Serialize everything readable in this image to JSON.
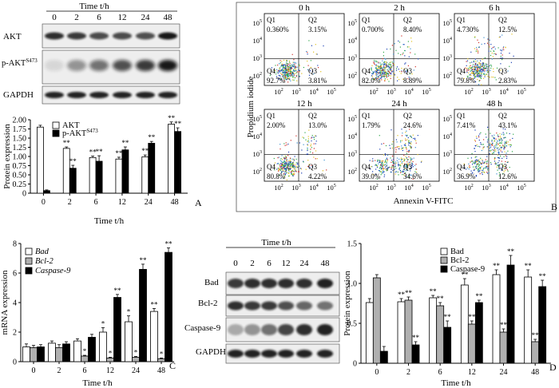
{
  "panelA": {
    "time_header": "Time t/h",
    "time_labels": [
      "0",
      "2",
      "6",
      "12",
      "24",
      "48"
    ],
    "blot_labels": [
      "AKT",
      "p-AKT",
      "GAPDH"
    ],
    "pakt_sup": "S473",
    "panel_letter": "A",
    "chart_data": {
      "type": "bar",
      "title": "",
      "xlabel": "Time t/h",
      "ylabel": "Protein expression",
      "categories": [
        "0",
        "2",
        "6",
        "12",
        "24",
        "48"
      ],
      "ylim": [
        0,
        2.0
      ],
      "yticks": [
        "0",
        "0.25",
        "0.50",
        "0.75",
        "1.00",
        "1.25",
        "1.50",
        "1.75",
        "2.00"
      ],
      "series": [
        {
          "name": "AKT",
          "values": [
            1.8,
            1.22,
            0.97,
            0.93,
            0.99,
            1.88
          ],
          "errors": [
            0.05,
            0.04,
            0.04,
            0.05,
            0.05,
            0.06
          ],
          "sig": [
            "",
            "**",
            "**",
            "**",
            "**",
            "**"
          ],
          "color": "#ffffff"
        },
        {
          "name": "p-AKT",
          "values": [
            0.07,
            0.68,
            0.87,
            1.18,
            1.36,
            1.68
          ],
          "errors": [
            0.02,
            0.08,
            0.15,
            0.08,
            0.05,
            0.1
          ],
          "sig": [
            "",
            "**",
            "**",
            "**",
            "**",
            "**"
          ],
          "color": "#000000"
        }
      ],
      "legend": "top-right"
    }
  },
  "panelB": {
    "ylabel": "Propidium iodide",
    "xlabel": "Annexin V-FITC",
    "panel_letter": "B",
    "tick_labels": [
      "10",
      "10",
      "10",
      "10"
    ],
    "tick_exps": [
      "2",
      "3",
      "4",
      "5"
    ],
    "plots": [
      {
        "time": "0 h",
        "q1": "0.360%",
        "q2": "3.15%",
        "q3": "3.81%",
        "q4": "92.7%"
      },
      {
        "time": "2 h",
        "q1": "0.700%",
        "q2": "8.40%",
        "q3": "8.89%",
        "q4": "82.0%"
      },
      {
        "time": "6 h",
        "q1": "4.730%",
        "q2": "12.5%",
        "q3": "2.83%",
        "q4": "79.8%"
      },
      {
        "time": "12 h",
        "q1": "2.00%",
        "q2": "13.0%",
        "q3": "4.22%",
        "q4": "80.8%"
      },
      {
        "time": "24 h",
        "q1": "1.79%",
        "q2": "24.6%",
        "q3": "34.6%",
        "q4": "39.0%"
      },
      {
        "time": "48 h",
        "q1": "7.41%",
        "q2": "43.1%",
        "q3": "12.6%",
        "q4": "36.9%"
      }
    ],
    "quadrant_names": [
      "Q1",
      "Q2",
      "Q3",
      "Q4"
    ]
  },
  "panelC": {
    "panel_letter": "C",
    "chart_data": {
      "type": "bar",
      "title": "",
      "xlabel": "Time t/h",
      "ylabel": "mRNA expression",
      "categories": [
        "0",
        "2",
        "6",
        "12",
        "24",
        "48"
      ],
      "ylim": [
        0,
        8
      ],
      "yticks": [
        "0",
        "2",
        "4",
        "6",
        "8"
      ],
      "series": [
        {
          "name": "Bad",
          "values": [
            1.0,
            1.25,
            1.4,
            2.0,
            2.7,
            3.4
          ],
          "errors": [
            0.2,
            0.15,
            0.15,
            0.3,
            0.4,
            0.2
          ],
          "sig": [
            "",
            "",
            "",
            "*",
            "*",
            "**"
          ],
          "color": "#ffffff"
        },
        {
          "name": "Bcl-2",
          "values": [
            0.95,
            0.95,
            0.38,
            0.25,
            0.3,
            0.2
          ],
          "errors": [
            0.15,
            0.2,
            0.05,
            0.05,
            0.05,
            0.05
          ],
          "sig": [
            "",
            "",
            "*",
            "*",
            "*",
            "*"
          ],
          "color": "#b0b0b0"
        },
        {
          "name": "Caspase-9",
          "values": [
            1.0,
            1.2,
            1.65,
            4.35,
            6.25,
            7.4
          ],
          "errors": [
            0.15,
            0.15,
            0.2,
            0.2,
            0.35,
            0.3
          ],
          "sig": [
            "",
            "",
            "",
            "**",
            "**",
            "**"
          ],
          "color": "#000000"
        }
      ],
      "legend": "top-left"
    }
  },
  "panelCblot": {
    "time_header": "Time t/h",
    "time_labels": [
      "0",
      "2",
      "6",
      "12",
      "24",
      "48"
    ],
    "blot_labels": [
      "Bad",
      "Bcl-2",
      "Caspase-9",
      "GAPDH"
    ]
  },
  "panelD": {
    "panel_letter": "D",
    "chart_data": {
      "type": "bar",
      "title": "",
      "xlabel": "Time t/h",
      "ylabel": "Protein expression",
      "categories": [
        "0",
        "2",
        "6",
        "12",
        "24",
        "48"
      ],
      "ylim": [
        0,
        1.5
      ],
      "yticks": [
        "0",
        "0.5",
        "1.0",
        "1.5"
      ],
      "series": [
        {
          "name": "Bad",
          "values": [
            0.76,
            0.77,
            0.82,
            0.98,
            1.11,
            1.08
          ],
          "errors": [
            0.05,
            0.04,
            0.03,
            0.08,
            0.06,
            0.09
          ],
          "sig": [
            "",
            "**",
            "**",
            "**",
            "**",
            "**"
          ],
          "color": "#ffffff"
        },
        {
          "name": "Bcl-2",
          "values": [
            1.07,
            0.79,
            0.72,
            0.49,
            0.39,
            0.27
          ],
          "errors": [
            0.04,
            0.04,
            0.04,
            0.04,
            0.04,
            0.03
          ],
          "sig": [
            "",
            "**",
            "**",
            "**",
            "**",
            "**"
          ],
          "color": "#b0b0b0"
        },
        {
          "name": "Caspase-9",
          "values": [
            0.15,
            0.23,
            0.45,
            0.76,
            1.23,
            0.96
          ],
          "errors": [
            0.06,
            0.04,
            0.08,
            0.03,
            0.12,
            0.08
          ],
          "sig": [
            "",
            "**",
            "**",
            "**",
            "**",
            "**"
          ],
          "color": "#000000"
        }
      ],
      "legend": "top-right"
    }
  }
}
